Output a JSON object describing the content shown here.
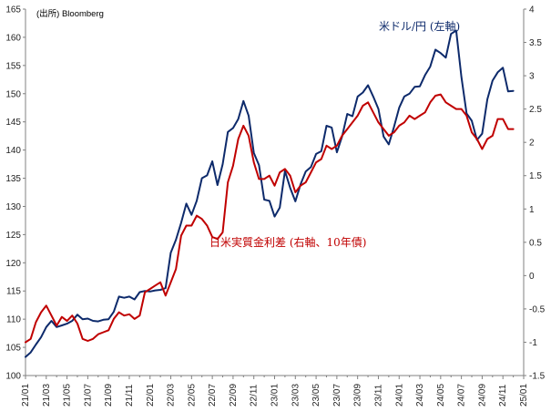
{
  "chart_data": {
    "type": "line",
    "source_note": "(出所) Bloomberg",
    "x_ticks": [
      "21/01",
      "21/03",
      "21/05",
      "21/07",
      "21/09",
      "21/11",
      "22/01",
      "22/03",
      "22/05",
      "22/07",
      "22/09",
      "22/11",
      "23/01",
      "23/03",
      "23/05",
      "23/07",
      "23/09",
      "23/11",
      "24/01",
      "24/03",
      "24/05",
      "24/07",
      "24/09",
      "24/11",
      "25/01"
    ],
    "left_axis": {
      "ylim": [
        100,
        165
      ],
      "ticks": [
        100,
        105,
        110,
        115,
        120,
        125,
        130,
        135,
        140,
        145,
        150,
        155,
        160,
        165
      ]
    },
    "right_axis": {
      "ylim": [
        -1.5,
        4
      ],
      "ticks": [
        "-1.5",
        "-1",
        "-0.5",
        "0",
        "0.5",
        "1",
        "1.5",
        "2",
        "2.5",
        "3",
        "3.5",
        "4"
      ]
    },
    "grid": false,
    "series": [
      {
        "name": "米ドル/円 (左軸)",
        "axis": "left",
        "color": "#0d2a6b",
        "points": [
          [
            "21/01",
            103.3
          ],
          [
            "21/01.5",
            104.1
          ],
          [
            "21/02",
            105.5
          ],
          [
            "21/02.5",
            106.8
          ],
          [
            "21/03",
            108.6
          ],
          [
            "21/03.5",
            109.7
          ],
          [
            "21/04",
            108.6
          ],
          [
            "21/04.5",
            108.9
          ],
          [
            "21/05",
            109.2
          ],
          [
            "21/05.5",
            109.7
          ],
          [
            "21/06",
            110.8
          ],
          [
            "21/06.5",
            110.0
          ],
          [
            "21/07",
            110.1
          ],
          [
            "21/07.5",
            109.7
          ],
          [
            "21/08",
            109.6
          ],
          [
            "21/08.5",
            109.9
          ],
          [
            "21/09",
            110.0
          ],
          [
            "21/09.5",
            111.3
          ],
          [
            "21/10",
            114.0
          ],
          [
            "21/10.5",
            113.8
          ],
          [
            "21/11",
            114.0
          ],
          [
            "21/11.5",
            113.5
          ],
          [
            "21/12",
            114.8
          ],
          [
            "21/12.5",
            115.0
          ],
          [
            "22/01",
            114.9
          ],
          [
            "22/01.5",
            115.1
          ],
          [
            "22/02",
            115.2
          ],
          [
            "22/02.5",
            115.5
          ],
          [
            "22/03",
            121.8
          ],
          [
            "22/03.5",
            124.1
          ],
          [
            "22/04",
            127.1
          ],
          [
            "22/04.5",
            130.5
          ],
          [
            "22/05",
            128.5
          ],
          [
            "22/05.5",
            131.0
          ],
          [
            "22/06",
            135.0
          ],
          [
            "22/06.5",
            135.5
          ],
          [
            "22/07",
            138.0
          ],
          [
            "22/07.5",
            133.8
          ],
          [
            "22/08",
            137.5
          ],
          [
            "22/08.5",
            143.2
          ],
          [
            "22/09",
            143.9
          ],
          [
            "22/09.5",
            145.5
          ],
          [
            "22/10",
            148.7
          ],
          [
            "22/10.5",
            146.1
          ],
          [
            "22/11",
            139.5
          ],
          [
            "22/11.5",
            137.3
          ],
          [
            "22/12",
            131.2
          ],
          [
            "22/12.5",
            131.0
          ],
          [
            "23/01",
            128.2
          ],
          [
            "23/01.5",
            129.8
          ],
          [
            "23/02",
            136.3
          ],
          [
            "23/02.5",
            133.3
          ],
          [
            "23/03",
            130.9
          ],
          [
            "23/03.5",
            133.9
          ],
          [
            "23/04",
            136.2
          ],
          [
            "23/04.5",
            137.0
          ],
          [
            "23/05",
            139.3
          ],
          [
            "23/05.5",
            139.8
          ],
          [
            "23/06",
            144.3
          ],
          [
            "23/06.5",
            144.0
          ],
          [
            "23/07",
            139.6
          ],
          [
            "23/07.5",
            142.4
          ],
          [
            "23/08",
            146.4
          ],
          [
            "23/08.5",
            146.0
          ],
          [
            "23/09",
            149.5
          ],
          [
            "23/09.5",
            150.2
          ],
          [
            "23/10",
            151.5
          ],
          [
            "23/10.5",
            149.5
          ],
          [
            "23/11",
            147.3
          ],
          [
            "23/11.5",
            142.4
          ],
          [
            "23/12",
            141.0
          ],
          [
            "23/12.5",
            144.1
          ],
          [
            "24/01",
            147.5
          ],
          [
            "24/01.5",
            149.5
          ],
          [
            "24/02",
            150.0
          ],
          [
            "24/02.5",
            151.2
          ],
          [
            "24/03",
            151.3
          ],
          [
            "24/03.5",
            153.3
          ],
          [
            "24/04",
            154.8
          ],
          [
            "24/04.5",
            157.8
          ],
          [
            "24/05",
            157.2
          ],
          [
            "24/05.5",
            156.4
          ],
          [
            "24/06",
            160.6
          ],
          [
            "24/06.5",
            161.2
          ],
          [
            "24/07",
            153.0
          ],
          [
            "24/07.5",
            146.5
          ],
          [
            "24/08",
            145.2
          ],
          [
            "24/08.5",
            141.8
          ],
          [
            "24/09",
            142.9
          ],
          [
            "24/09.5",
            149.0
          ],
          [
            "24/10",
            152.3
          ],
          [
            "24/10.5",
            153.8
          ],
          [
            "24/11",
            154.6
          ],
          [
            "24/11.5",
            150.4
          ],
          [
            "24/12",
            150.5
          ]
        ]
      },
      {
        "name": "日米実質金利差 (右軸、10年債)",
        "axis": "right",
        "color": "#c00000",
        "points": [
          [
            "21/01",
            -1.0
          ],
          [
            "21/01.5",
            -0.95
          ],
          [
            "21/02",
            -0.7
          ],
          [
            "21/02.5",
            -0.55
          ],
          [
            "21/03",
            -0.45
          ],
          [
            "21/03.5",
            -0.6
          ],
          [
            "21/04",
            -0.75
          ],
          [
            "21/04.5",
            -0.62
          ],
          [
            "21/05",
            -0.68
          ],
          [
            "21/05.5",
            -0.6
          ],
          [
            "21/06",
            -0.72
          ],
          [
            "21/06.5",
            -0.95
          ],
          [
            "21/07",
            -0.98
          ],
          [
            "21/07.5",
            -0.95
          ],
          [
            "21/08",
            -0.88
          ],
          [
            "21/08.5",
            -0.85
          ],
          [
            "21/09",
            -0.82
          ],
          [
            "21/09.5",
            -0.65
          ],
          [
            "21/10",
            -0.55
          ],
          [
            "21/10.5",
            -0.6
          ],
          [
            "21/11",
            -0.58
          ],
          [
            "21/11.5",
            -0.65
          ],
          [
            "21/12",
            -0.6
          ],
          [
            "21/12.5",
            -0.25
          ],
          [
            "22/01",
            -0.2
          ],
          [
            "22/01.5",
            -0.15
          ],
          [
            "22/02",
            -0.1
          ],
          [
            "22/02.5",
            -0.3
          ],
          [
            "22/03",
            -0.1
          ],
          [
            "22/03.5",
            0.1
          ],
          [
            "22/04",
            0.6
          ],
          [
            "22/04.5",
            0.75
          ],
          [
            "22/05",
            0.75
          ],
          [
            "22/05.5",
            0.9
          ],
          [
            "22/06",
            0.85
          ],
          [
            "22/06.5",
            0.75
          ],
          [
            "22/07",
            0.58
          ],
          [
            "22/07.5",
            0.55
          ],
          [
            "22/08",
            0.65
          ],
          [
            "22/08.5",
            1.4
          ],
          [
            "22/09",
            1.65
          ],
          [
            "22/09.5",
            2.05
          ],
          [
            "22/10",
            2.25
          ],
          [
            "22/10.5",
            2.1
          ],
          [
            "22/11",
            1.7
          ],
          [
            "22/11.5",
            1.45
          ],
          [
            "22/12",
            1.45
          ],
          [
            "22/12.5",
            1.5
          ],
          [
            "23/01",
            1.35
          ],
          [
            "23/01.5",
            1.55
          ],
          [
            "23/02",
            1.6
          ],
          [
            "23/02.5",
            1.5
          ],
          [
            "23/03",
            1.25
          ],
          [
            "23/03.5",
            1.35
          ],
          [
            "23/04",
            1.4
          ],
          [
            "23/04.5",
            1.55
          ],
          [
            "23/05",
            1.7
          ],
          [
            "23/05.5",
            1.75
          ],
          [
            "23/06",
            1.95
          ],
          [
            "23/06.5",
            1.9
          ],
          [
            "23/07",
            1.95
          ],
          [
            "23/07.5",
            2.1
          ],
          [
            "23/08",
            2.2
          ],
          [
            "23/08.5",
            2.3
          ],
          [
            "23/09",
            2.4
          ],
          [
            "23/09.5",
            2.55
          ],
          [
            "23/10",
            2.6
          ],
          [
            "23/10.5",
            2.45
          ],
          [
            "23/11",
            2.3
          ],
          [
            "23/11.5",
            2.2
          ],
          [
            "23/12",
            2.1
          ],
          [
            "23/12.5",
            2.15
          ],
          [
            "24/01",
            2.25
          ],
          [
            "24/01.5",
            2.3
          ],
          [
            "24/02",
            2.4
          ],
          [
            "24/02.5",
            2.35
          ],
          [
            "24/03",
            2.4
          ],
          [
            "24/03.5",
            2.45
          ],
          [
            "24/04",
            2.6
          ],
          [
            "24/04.5",
            2.7
          ],
          [
            "24/05",
            2.72
          ],
          [
            "24/05.5",
            2.6
          ],
          [
            "24/06",
            2.55
          ],
          [
            "24/06.5",
            2.5
          ],
          [
            "24/07",
            2.5
          ],
          [
            "24/07.5",
            2.4
          ],
          [
            "24/08",
            2.15
          ],
          [
            "24/08.5",
            2.05
          ],
          [
            "24/09",
            1.9
          ],
          [
            "24/09.5",
            2.05
          ],
          [
            "24/10",
            2.1
          ],
          [
            "24/10.5",
            2.35
          ],
          [
            "24/11",
            2.35
          ],
          [
            "24/11.5",
            2.2
          ],
          [
            "24/12",
            2.2
          ]
        ]
      }
    ],
    "annotations": [
      {
        "text": "米ドル/円 (左軸)",
        "color": "#0d2a6b"
      },
      {
        "text": "日米実質金利差 (右軸、10年債)",
        "color": "#c00000"
      }
    ]
  }
}
